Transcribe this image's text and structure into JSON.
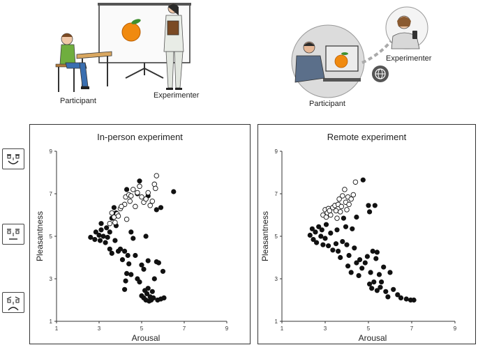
{
  "top_scene": {
    "inperson": {
      "participant_label": "Participant",
      "experimenter_label": "Experimenter"
    },
    "remote": {
      "participant_label": "Participant",
      "experimenter_label": "Experimenter"
    }
  },
  "faces": [
    {
      "name": "pleasant-face-icon",
      "mood": "happy"
    },
    {
      "name": "neutral-face-icon",
      "mood": "neutral"
    },
    {
      "name": "unpleasant-face-icon",
      "mood": "sad"
    }
  ],
  "chart_data": [
    {
      "type": "scatter",
      "title": "In-person experiment",
      "xlabel": "Arousal",
      "ylabel": "Pleasantness",
      "xlim": [
        1,
        9
      ],
      "ylim": [
        1,
        9
      ],
      "xticks": [
        "1",
        "3",
        "5",
        "7",
        "9"
      ],
      "yticks": [
        "1",
        "3",
        "5",
        "7",
        "9"
      ],
      "series": [
        {
          "marker": "filled",
          "points": [
            [
              2.6,
              4.95
            ],
            [
              2.8,
              4.85
            ],
            [
              2.85,
              5.2
            ],
            [
              3.0,
              5.05
            ],
            [
              3.05,
              4.8
            ],
            [
              3.1,
              5.3
            ],
            [
              3.1,
              5.6
            ],
            [
              3.2,
              5.0
            ],
            [
              3.3,
              4.7
            ],
            [
              3.35,
              5.4
            ],
            [
              3.4,
              4.95
            ],
            [
              3.5,
              4.4
            ],
            [
              3.5,
              5.2
            ],
            [
              3.6,
              4.2
            ],
            [
              3.6,
              5.85
            ],
            [
              3.7,
              6.35
            ],
            [
              3.75,
              4.8
            ],
            [
              3.8,
              5.5
            ],
            [
              3.8,
              6.1
            ],
            [
              3.9,
              4.3
            ],
            [
              4.0,
              4.4
            ],
            [
              4.1,
              3.9
            ],
            [
              4.2,
              2.5
            ],
            [
              4.2,
              4.3
            ],
            [
              4.3,
              3.25
            ],
            [
              4.35,
              4.1
            ],
            [
              4.4,
              3.7
            ],
            [
              4.5,
              3.2
            ],
            [
              4.5,
              5.2
            ],
            [
              4.6,
              4.9
            ],
            [
              4.7,
              4.1
            ],
            [
              4.8,
              3.0
            ],
            [
              4.9,
              2.85
            ],
            [
              5.0,
              2.2
            ],
            [
              5.1,
              2.1
            ],
            [
              5.15,
              2.45
            ],
            [
              5.2,
              2.0
            ],
            [
              5.25,
              2.3
            ],
            [
              5.3,
              2.55
            ],
            [
              5.35,
              1.95
            ],
            [
              5.4,
              2.15
            ],
            [
              5.45,
              2.0
            ],
            [
              5.5,
              2.4
            ],
            [
              5.55,
              2.1
            ],
            [
              5.6,
              3.0
            ],
            [
              5.7,
              3.8
            ],
            [
              5.75,
              2.0
            ],
            [
              5.8,
              3.75
            ],
            [
              5.9,
              2.05
            ],
            [
              6.0,
              3.35
            ],
            [
              6.05,
              2.1
            ],
            [
              5.3,
              3.85
            ],
            [
              5.1,
              3.45
            ],
            [
              5.0,
              3.65
            ],
            [
              4.8,
              7.0
            ],
            [
              4.9,
              7.6
            ],
            [
              5.3,
              6.9
            ],
            [
              5.7,
              6.25
            ],
            [
              5.9,
              6.35
            ],
            [
              6.5,
              7.1
            ],
            [
              4.3,
              7.2
            ],
            [
              4.25,
              2.9
            ],
            [
              5.2,
              5.0
            ]
          ]
        },
        {
          "marker": "open",
          "points": [
            [
              3.5,
              5.6
            ],
            [
              3.6,
              6.1
            ],
            [
              3.7,
              5.9
            ],
            [
              3.75,
              5.65
            ],
            [
              3.85,
              6.05
            ],
            [
              4.0,
              6.3
            ],
            [
              4.2,
              6.5
            ],
            [
              4.25,
              6.85
            ],
            [
              4.3,
              5.8
            ],
            [
              4.4,
              6.95
            ],
            [
              4.45,
              6.65
            ],
            [
              4.5,
              6.9
            ],
            [
              4.6,
              7.2
            ],
            [
              4.7,
              6.4
            ],
            [
              4.8,
              7.05
            ],
            [
              4.9,
              7.35
            ],
            [
              5.0,
              6.85
            ],
            [
              5.1,
              6.6
            ],
            [
              5.2,
              6.75
            ],
            [
              5.3,
              7.05
            ],
            [
              5.4,
              6.45
            ],
            [
              5.5,
              6.65
            ],
            [
              5.6,
              7.45
            ],
            [
              5.7,
              7.85
            ],
            [
              5.65,
              7.25
            ],
            [
              3.9,
              5.95
            ],
            [
              4.05,
              6.4
            ]
          ]
        }
      ]
    },
    {
      "type": "scatter",
      "title": "Remote experiment",
      "xlabel": "Arousal",
      "ylabel": "Pleasantness",
      "xlim": [
        1,
        9
      ],
      "ylim": [
        1,
        9
      ],
      "xticks": [
        "1",
        "3",
        "5",
        "7",
        "9"
      ],
      "yticks": [
        "1",
        "3",
        "5",
        "7",
        "9"
      ],
      "series": [
        {
          "marker": "filled",
          "points": [
            [
              2.3,
              5.05
            ],
            [
              2.4,
              5.35
            ],
            [
              2.45,
              4.85
            ],
            [
              2.55,
              5.2
            ],
            [
              2.6,
              4.7
            ],
            [
              2.7,
              5.45
            ],
            [
              2.8,
              5.0
            ],
            [
              2.85,
              5.3
            ],
            [
              2.9,
              4.6
            ],
            [
              3.0,
              4.9
            ],
            [
              3.05,
              5.55
            ],
            [
              3.15,
              4.55
            ],
            [
              3.25,
              5.15
            ],
            [
              3.35,
              4.35
            ],
            [
              3.5,
              4.65
            ],
            [
              3.55,
              5.3
            ],
            [
              3.7,
              4.0
            ],
            [
              3.8,
              4.75
            ],
            [
              3.85,
              5.85
            ],
            [
              3.95,
              5.45
            ],
            [
              4.05,
              3.6
            ],
            [
              4.1,
              4.1
            ],
            [
              4.25,
              5.35
            ],
            [
              4.35,
              4.45
            ],
            [
              4.45,
              3.75
            ],
            [
              4.55,
              3.15
            ],
            [
              4.6,
              3.9
            ],
            [
              4.7,
              3.5
            ],
            [
              4.85,
              3.75
            ],
            [
              4.95,
              4.05
            ],
            [
              5.05,
              2.75
            ],
            [
              5.1,
              3.3
            ],
            [
              5.15,
              2.55
            ],
            [
              5.2,
              4.3
            ],
            [
              5.25,
              2.85
            ],
            [
              5.35,
              3.95
            ],
            [
              5.4,
              2.45
            ],
            [
              5.5,
              3.2
            ],
            [
              5.55,
              2.6
            ],
            [
              5.6,
              2.85
            ],
            [
              5.7,
              3.55
            ],
            [
              5.8,
              2.4
            ],
            [
              5.9,
              2.15
            ],
            [
              6.0,
              3.3
            ],
            [
              6.15,
              2.5
            ],
            [
              6.35,
              2.25
            ],
            [
              6.5,
              2.1
            ],
            [
              6.75,
              2.05
            ],
            [
              6.95,
              2.0
            ],
            [
              7.1,
              2.0
            ],
            [
              4.75,
              7.65
            ],
            [
              4.45,
              5.9
            ],
            [
              5.0,
              6.45
            ],
            [
              5.05,
              6.15
            ],
            [
              5.3,
              6.45
            ],
            [
              5.4,
              4.25
            ],
            [
              4.2,
              3.3
            ],
            [
              4.0,
              4.6
            ],
            [
              3.6,
              4.3
            ]
          ]
        },
        {
          "marker": "open",
          "points": [
            [
              2.9,
              6.0
            ],
            [
              3.0,
              6.25
            ],
            [
              3.1,
              6.1
            ],
            [
              3.15,
              6.3
            ],
            [
              3.25,
              6.0
            ],
            [
              3.35,
              6.35
            ],
            [
              3.45,
              6.45
            ],
            [
              3.5,
              6.2
            ],
            [
              3.6,
              6.5
            ],
            [
              3.65,
              6.75
            ],
            [
              3.75,
              6.4
            ],
            [
              3.8,
              6.9
            ],
            [
              3.9,
              7.2
            ],
            [
              3.95,
              6.6
            ],
            [
              4.05,
              6.85
            ],
            [
              4.1,
              6.5
            ],
            [
              4.2,
              6.75
            ],
            [
              4.3,
              6.95
            ],
            [
              4.4,
              7.55
            ],
            [
              3.55,
              5.85
            ],
            [
              3.7,
              6.15
            ],
            [
              4.0,
              6.25
            ],
            [
              3.2,
              6.2
            ],
            [
              3.05,
              5.9
            ]
          ]
        }
      ]
    }
  ]
}
